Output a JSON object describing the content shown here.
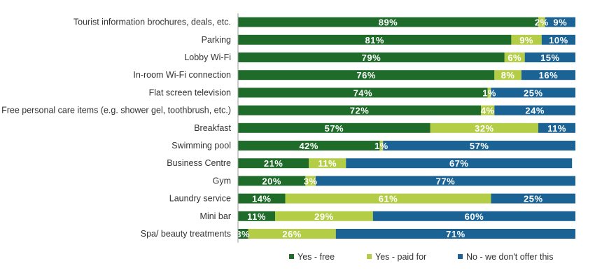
{
  "chart_data": {
    "type": "bar",
    "orientation": "horizontal",
    "stacked": true,
    "value_suffix": "%",
    "xlim": [
      0,
      100
    ],
    "grid": false,
    "legend_position": "bottom",
    "categories": [
      "Tourist information brochures, deals, etc.",
      "Parking",
      "Lobby Wi-Fi",
      "In-room Wi-Fi connection",
      "Flat screen television",
      "Free personal care items (e.g. shower gel, toothbrush, etc.)",
      "Breakfast",
      "Swimming pool",
      "Business Centre",
      "Gym",
      "Laundry service",
      "Mini bar",
      "Spa/ beauty treatments"
    ],
    "series": [
      {
        "name": "Yes - free",
        "color": "#1e6b2a",
        "values": [
          89,
          81,
          79,
          76,
          74,
          72,
          57,
          42,
          21,
          20,
          14,
          11,
          3
        ]
      },
      {
        "name": "Yes - paid for",
        "color": "#b3cd47",
        "values": [
          2,
          9,
          6,
          8,
          1,
          4,
          32,
          1,
          11,
          3,
          61,
          29,
          26
        ]
      },
      {
        "name": "No - we don't offer this",
        "color": "#1b6395",
        "values": [
          9,
          10,
          15,
          16,
          25,
          24,
          11,
          57,
          67,
          77,
          25,
          60,
          71
        ]
      }
    ]
  }
}
